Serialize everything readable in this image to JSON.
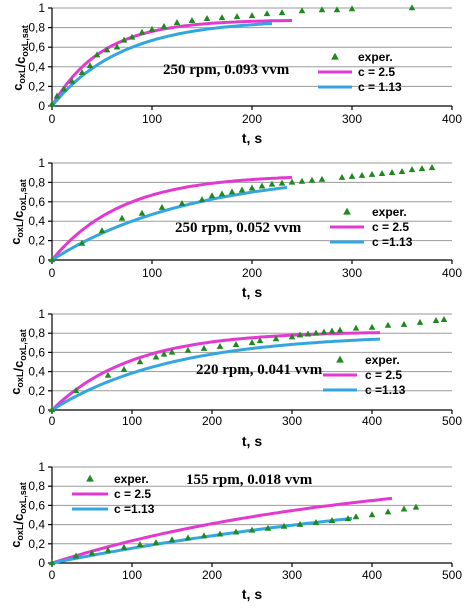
{
  "colors": {
    "exper": "#1e8a1e",
    "c25": "#e23ad0",
    "c113": "#33a6df"
  },
  "icons": {
    "exper_marker": "triangle-marker"
  },
  "chart_data": [
    {
      "type": "line",
      "condition": "250 rpm, 0.093 vvm",
      "xlabel": "t, s",
      "ylabel": "c_oxL/c_oxL,sat",
      "xlim": [
        0,
        400
      ],
      "ylim": [
        0,
        1
      ],
      "xticks": [
        "0",
        "100",
        "200",
        "300",
        "400"
      ],
      "yticks": [
        "0",
        "0,2",
        "0,4",
        "0,6",
        "0,8",
        "1"
      ],
      "grid": "horizontal",
      "legend_position": "right",
      "series": [
        {
          "name": "exper.",
          "style": "markers",
          "x": [
            0,
            5,
            12,
            20,
            30,
            38,
            45,
            55,
            65,
            72,
            80,
            90,
            100,
            112,
            125,
            140,
            155,
            170,
            185,
            200,
            215,
            230,
            250,
            270,
            285,
            300,
            360
          ],
          "y": [
            0.02,
            0.1,
            0.17,
            0.25,
            0.34,
            0.41,
            0.52,
            0.57,
            0.6,
            0.67,
            0.7,
            0.75,
            0.78,
            0.81,
            0.85,
            0.87,
            0.89,
            0.9,
            0.91,
            0.92,
            0.94,
            0.95,
            0.97,
            0.98,
            0.98,
            0.99,
            1.0
          ]
        },
        {
          "name": "c = 2.5",
          "style": "line",
          "tau": 50,
          "a": 0.88,
          "xmax": 240
        },
        {
          "name": "c = 1.13",
          "style": "line",
          "tau": 70,
          "a": 0.88,
          "xmax": 220
        }
      ]
    },
    {
      "type": "line",
      "condition": "250 rpm, 0.052 vvm",
      "xlabel": "t, s",
      "ylabel": "c_oxL/c_oxL,sat",
      "xlim": [
        0,
        400
      ],
      "ylim": [
        0,
        1
      ],
      "xticks": [
        "0",
        "100",
        "200",
        "300",
        "400"
      ],
      "yticks": [
        "0",
        "0,2",
        "0,4",
        "0,6",
        "0,8",
        "1"
      ],
      "grid": "horizontal",
      "legend_position": "right",
      "series": [
        {
          "name": "exper.",
          "style": "markers",
          "x": [
            0,
            30,
            50,
            70,
            90,
            110,
            130,
            150,
            160,
            170,
            180,
            190,
            200,
            210,
            220,
            230,
            240,
            250,
            260,
            270,
            290,
            300,
            310,
            320,
            330,
            340,
            350,
            360,
            370,
            380
          ],
          "y": [
            0.0,
            0.17,
            0.3,
            0.43,
            0.48,
            0.54,
            0.58,
            0.62,
            0.66,
            0.68,
            0.7,
            0.72,
            0.74,
            0.76,
            0.78,
            0.79,
            0.8,
            0.81,
            0.82,
            0.83,
            0.85,
            0.86,
            0.87,
            0.88,
            0.89,
            0.9,
            0.91,
            0.93,
            0.94,
            0.95
          ]
        },
        {
          "name": "c = 2.5",
          "style": "line",
          "tau": 70,
          "a": 0.88,
          "xmax": 240
        },
        {
          "name": "c =1.13",
          "style": "line",
          "tau": 140,
          "a": 0.92,
          "xmax": 235
        }
      ]
    },
    {
      "type": "line",
      "condition": "220 rpm, 0.041 vvm",
      "xlabel": "t, s",
      "ylabel": "c_oxL/c_oxL,sat",
      "xlim": [
        0,
        500
      ],
      "ylim": [
        0,
        1
      ],
      "xticks": [
        "0",
        "100",
        "200",
        "300",
        "400",
        "500"
      ],
      "yticks": [
        "0",
        "0,2",
        "0,4",
        "0,6",
        "0,8",
        "1"
      ],
      "grid": "horizontal",
      "legend_position": "right",
      "series": [
        {
          "name": "exper.",
          "style": "markers",
          "x": [
            0,
            30,
            70,
            90,
            110,
            130,
            140,
            150,
            170,
            190,
            210,
            230,
            250,
            260,
            280,
            300,
            310,
            320,
            330,
            340,
            350,
            360,
            380,
            400,
            420,
            440,
            460,
            480,
            490
          ],
          "y": [
            0.0,
            0.2,
            0.36,
            0.42,
            0.5,
            0.55,
            0.58,
            0.6,
            0.62,
            0.64,
            0.66,
            0.68,
            0.7,
            0.72,
            0.74,
            0.76,
            0.78,
            0.79,
            0.8,
            0.81,
            0.82,
            0.83,
            0.85,
            0.86,
            0.88,
            0.89,
            0.91,
            0.93,
            0.94
          ]
        },
        {
          "name": "c = 2.5",
          "style": "line",
          "tau": 100,
          "a": 0.82,
          "xmax": 410
        },
        {
          "name": "c =1.13",
          "style": "line",
          "tau": 150,
          "a": 0.79,
          "xmax": 410
        }
      ]
    },
    {
      "type": "line",
      "condition": "155 rpm, 0.018 vvm",
      "xlabel": "t, s",
      "ylabel": "c_oxL/c_oxL,sat",
      "xlim": [
        0,
        500
      ],
      "ylim": [
        0,
        1
      ],
      "xticks": [
        "0",
        "100",
        "200",
        "300",
        "400",
        "500"
      ],
      "yticks": [
        "0",
        "0,2",
        "0,4",
        "0,6",
        "0,8",
        "1"
      ],
      "grid": "horizontal",
      "legend_position": "top-left",
      "series": [
        {
          "name": "exper.",
          "style": "markers",
          "x": [
            0,
            30,
            50,
            70,
            90,
            110,
            130,
            150,
            170,
            190,
            210,
            230,
            250,
            270,
            290,
            310,
            330,
            350,
            370,
            380,
            400,
            420,
            440,
            455
          ],
          "y": [
            0.0,
            0.07,
            0.1,
            0.13,
            0.16,
            0.19,
            0.21,
            0.24,
            0.26,
            0.28,
            0.3,
            0.32,
            0.34,
            0.36,
            0.38,
            0.4,
            0.42,
            0.44,
            0.46,
            0.48,
            0.5,
            0.53,
            0.56,
            0.58
          ]
        },
        {
          "name": "c = 2.5",
          "style": "line",
          "tau": 380,
          "a": 1.0,
          "xmax": 425
        },
        {
          "name": "c =1.13",
          "style": "line",
          "tau": 600,
          "a": 1.0,
          "xmax": 375
        }
      ]
    }
  ]
}
